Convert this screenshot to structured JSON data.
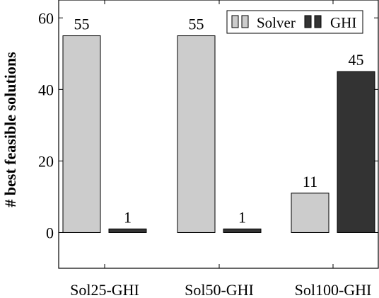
{
  "chart_data": {
    "type": "bar",
    "title": "",
    "xlabel": "",
    "ylabel": "# best feasible solutions",
    "categories": [
      "Sol25-GHI",
      "Sol50-GHI",
      "Sol100-GHI"
    ],
    "series": [
      {
        "name": "Solver",
        "values": [
          55,
          55,
          11
        ],
        "color": "#cccccc"
      },
      {
        "name": "GHI",
        "values": [
          1,
          1,
          45
        ],
        "color": "#333333"
      }
    ],
    "ylim": [
      -10,
      65
    ],
    "yticks": [
      0,
      20,
      40,
      60
    ],
    "grid": false,
    "legend": "top-right"
  }
}
